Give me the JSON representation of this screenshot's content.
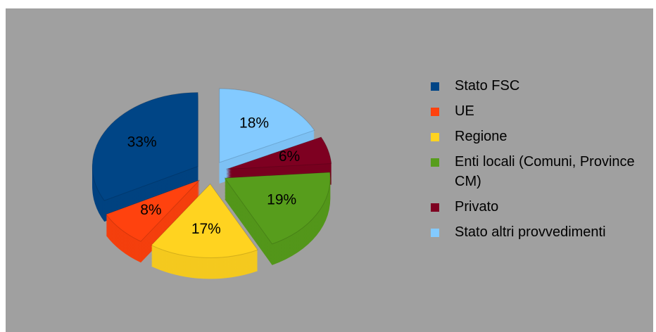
{
  "chart_data": {
    "type": "pie",
    "categories": [
      "Stato FSC",
      "UE",
      "Regione",
      "Enti locali (Comuni, Province CM)",
      "Privato",
      "Stato altri provvedimenti"
    ],
    "values": [
      33,
      8,
      17,
      19,
      6,
      18
    ],
    "value_labels": [
      "33%",
      "8%",
      "17%",
      "19%",
      "6%",
      "18%"
    ],
    "colors": [
      "#004586",
      "#ff420e",
      "#ffd320",
      "#579d1c",
      "#7e0021",
      "#83caff"
    ],
    "legend": "right"
  }
}
